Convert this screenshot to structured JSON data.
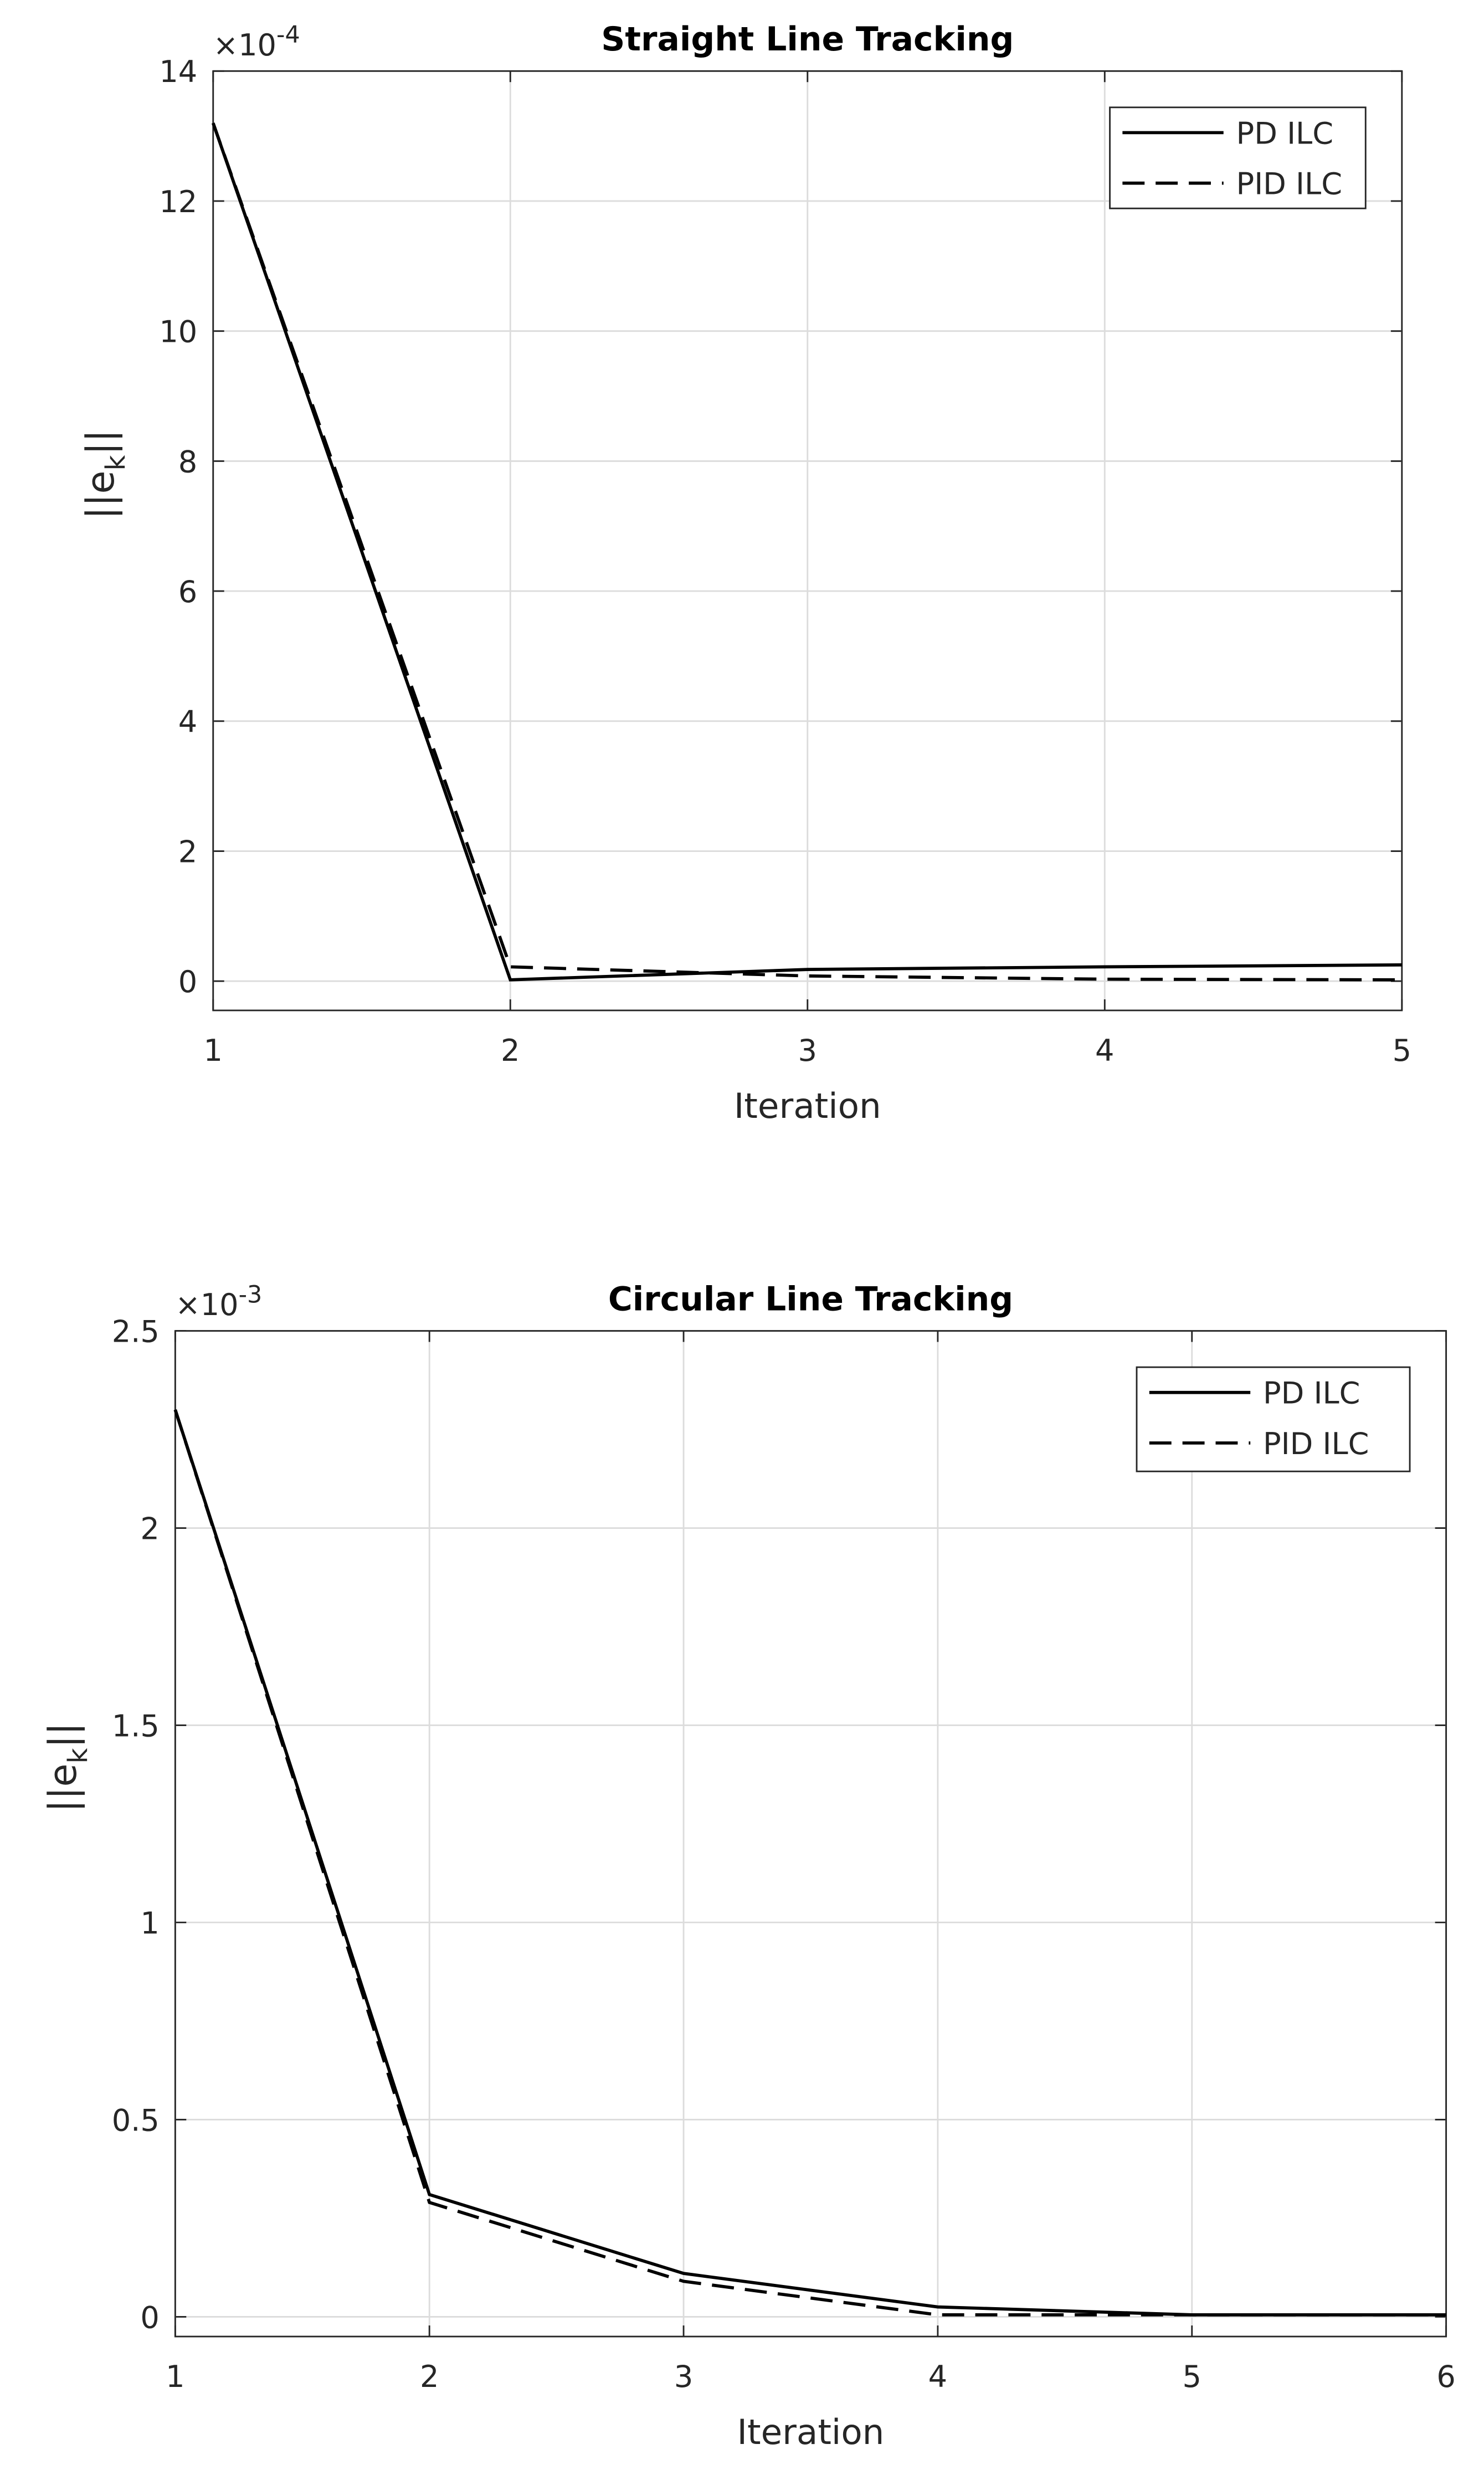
{
  "chart_data": [
    {
      "type": "line",
      "title": "Straight Line Tracking",
      "xlabel": "Iteration",
      "ylabel": {
        "text": "||e",
        "subscript": "k",
        "end": "||"
      },
      "y_multiplier": {
        "base": "×10",
        "exponent": "-4"
      },
      "x": [
        1,
        2,
        3,
        4,
        5
      ],
      "xlim": [
        1,
        5
      ],
      "xticks": [
        1,
        2,
        3,
        4,
        5
      ],
      "ylim": [
        -0.45,
        14
      ],
      "yticks": [
        0,
        2,
        4,
        6,
        8,
        10,
        12,
        14
      ],
      "grid": true,
      "legend": "northeast",
      "series": [
        {
          "name": "PD ILC",
          "color": "#000000",
          "linestyle": "solid",
          "values": [
            13.2,
            0.02,
            0.18,
            0.22,
            0.25
          ]
        },
        {
          "name": "PID ILC",
          "color": "#000000",
          "linestyle": "dashed",
          "values": [
            13.2,
            0.22,
            0.08,
            0.03,
            0.02
          ]
        }
      ]
    },
    {
      "type": "line",
      "title": "Circular Line Tracking",
      "xlabel": "Iteration",
      "ylabel": {
        "text": "||e",
        "subscript": "k",
        "end": "||"
      },
      "y_multiplier": {
        "base": "×10",
        "exponent": "-3"
      },
      "x": [
        1,
        2,
        3,
        4,
        5,
        6
      ],
      "xlim": [
        1,
        6
      ],
      "xticks": [
        1,
        2,
        3,
        4,
        5,
        6
      ],
      "ylim": [
        -0.05,
        2.5
      ],
      "yticks": [
        0,
        0.5,
        1,
        1.5,
        2,
        2.5
      ],
      "grid": true,
      "legend": "northeast",
      "series": [
        {
          "name": "PD ILC",
          "color": "#000000",
          "linestyle": "solid",
          "values": [
            2.3,
            0.31,
            0.11,
            0.025,
            0.005,
            0.005
          ]
        },
        {
          "name": "PID ILC",
          "color": "#000000",
          "linestyle": "dashed",
          "values": [
            2.3,
            0.29,
            0.09,
            0.005,
            0.005,
            0.005
          ]
        }
      ]
    }
  ]
}
